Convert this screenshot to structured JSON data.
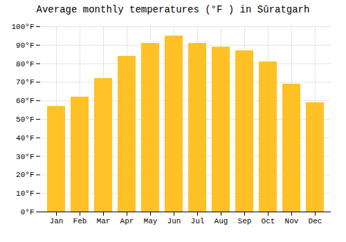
{
  "chart_data": {
    "type": "bar",
    "title": "Average monthly temperatures (°F ) in Sūratgarh",
    "categories": [
      "Jan",
      "Feb",
      "Mar",
      "Apr",
      "May",
      "Jun",
      "Jul",
      "Aug",
      "Sep",
      "Oct",
      "Nov",
      "Dec"
    ],
    "values": [
      57,
      62,
      72,
      84,
      91,
      95,
      91,
      89,
      87,
      81,
      69,
      59
    ],
    "color": "#FFC125",
    "ylim": [
      0,
      100
    ],
    "yticks": [
      {
        "value": 0,
        "label": "0°F"
      },
      {
        "value": 10,
        "label": "10°F"
      },
      {
        "value": 20,
        "label": "20°F"
      },
      {
        "value": 30,
        "label": "30°F"
      },
      {
        "value": 40,
        "label": "40°F"
      },
      {
        "value": 50,
        "label": "50°F"
      },
      {
        "value": 60,
        "label": "60°F"
      },
      {
        "value": 70,
        "label": "70°F"
      },
      {
        "value": 80,
        "label": "80°F"
      },
      {
        "value": 90,
        "label": "90°F"
      },
      {
        "value": 100,
        "label": "100°F"
      }
    ],
    "grid": true
  }
}
